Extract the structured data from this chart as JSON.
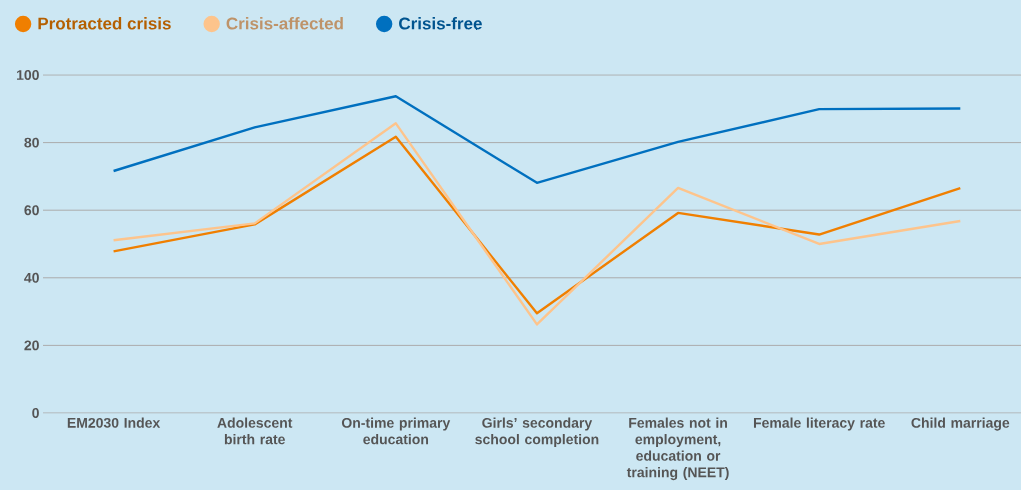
{
  "chart_data": {
    "type": "line",
    "categories": [
      "EM2030 Index",
      "Adolescent birth rate",
      "On-time primary education",
      "Girls’ secondary school completion",
      "Females not in employment, education or training (NEET)",
      "Female literacy rate",
      "Child marriage"
    ],
    "series": [
      {
        "name": "Protracted crisis",
        "color": "#f07f00",
        "values": [
          47.8,
          55.8,
          81.7,
          29.5,
          59.2,
          52.8,
          66.5
        ]
      },
      {
        "name": "Crisis-affected",
        "color": "#fdc48c",
        "values": [
          51.1,
          56.1,
          85.7,
          26.2,
          66.6,
          50.0,
          56.8
        ]
      },
      {
        "name": "Crisis-free",
        "color": "#0070bf",
        "values": [
          71.6,
          84.5,
          93.7,
          68.1,
          80.2,
          89.9,
          90.1
        ]
      }
    ],
    "ylim": [
      0,
      100
    ],
    "yticks": [
      0,
      20,
      40,
      60,
      80,
      100
    ],
    "grid": "y",
    "legend": "top left",
    "marker": "none",
    "line_style": "solid"
  }
}
